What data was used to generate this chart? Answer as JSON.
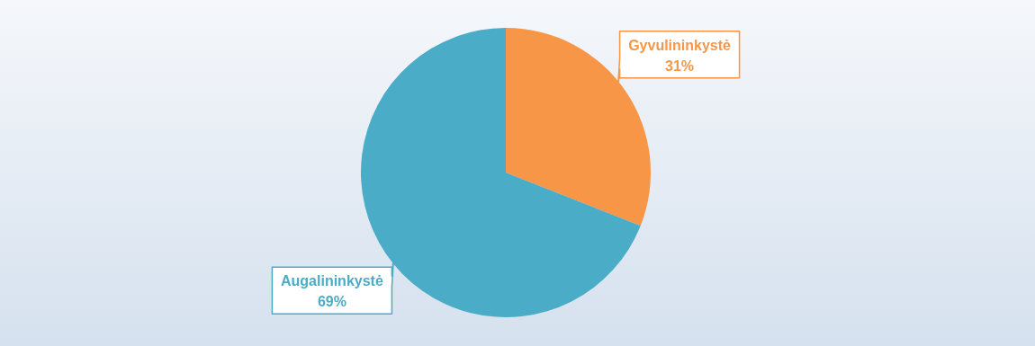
{
  "chart_data": {
    "type": "pie",
    "categories": [
      "Gyvulininkystė",
      "Augalininkystė"
    ],
    "values": [
      31,
      69
    ],
    "colors": [
      "#f79646",
      "#4aacc6"
    ],
    "value_labels": [
      "31%",
      "69%"
    ]
  }
}
